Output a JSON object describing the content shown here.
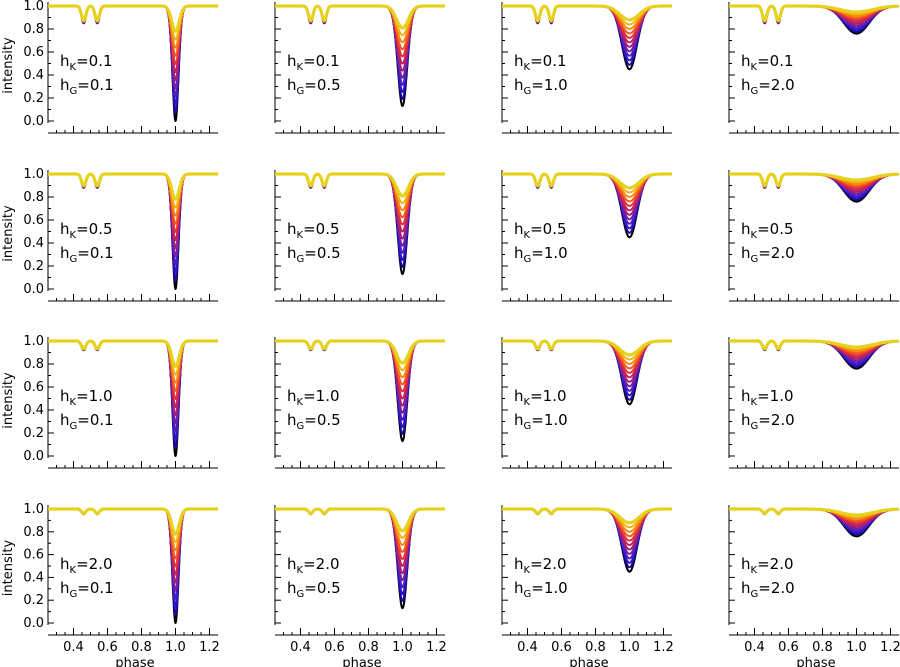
{
  "chart_data": {
    "type": "line",
    "grid": false,
    "layout": "4 rows x 4 columns of small-multiple panels",
    "xlabel": "phase",
    "ylabel": "intensity",
    "xlim": [
      0.25,
      1.25
    ],
    "ylim": [
      -0.05,
      1.05
    ],
    "x_ticks": [
      "0.4",
      "0.6",
      "0.8",
      "1.0",
      "1.2"
    ],
    "y_ticks": [
      "0.0",
      "0.2",
      "0.4",
      "0.6",
      "0.8",
      "1.0"
    ],
    "series_colors": [
      "#000000",
      "#1a0aa6",
      "#2e16c8",
      "#4a1ec0",
      "#7a1ea0",
      "#a2207c",
      "#c82058",
      "#e63232",
      "#f25a1e",
      "#f5880f",
      "#f2b10c",
      "#e6d21e"
    ],
    "primary_eclipse": {
      "center": 1.0,
      "min_intensity_by_col": [
        0.0,
        0.13,
        0.45,
        0.76
      ],
      "width_by_col": [
        0.018,
        0.028,
        0.045,
        0.075
      ]
    },
    "secondary_eclipse": {
      "centers": [
        0.46,
        0.54
      ],
      "min_intensity_by_row": [
        0.85,
        0.88,
        0.92,
        0.955
      ]
    },
    "panels": [
      [
        {
          "hK": "h",
          "K_sub": "K",
          "K_val": "=0.1",
          "hG": "h",
          "G_sub": "G",
          "G_val": "=0.1"
        },
        {
          "hK": "h",
          "K_sub": "K",
          "K_val": "=0.1",
          "hG": "h",
          "G_sub": "G",
          "G_val": "=0.5"
        },
        {
          "hK": "h",
          "K_sub": "K",
          "K_val": "=0.1",
          "hG": "h",
          "G_sub": "G",
          "G_val": "=1.0"
        },
        {
          "hK": "h",
          "K_sub": "K",
          "K_val": "=0.1",
          "hG": "h",
          "G_sub": "G",
          "G_val": "=2.0"
        }
      ],
      [
        {
          "hK": "h",
          "K_sub": "K",
          "K_val": "=0.5",
          "hG": "h",
          "G_sub": "G",
          "G_val": "=0.1"
        },
        {
          "hK": "h",
          "K_sub": "K",
          "K_val": "=0.5",
          "hG": "h",
          "G_sub": "G",
          "G_val": "=0.5"
        },
        {
          "hK": "h",
          "K_sub": "K",
          "K_val": "=0.5",
          "hG": "h",
          "G_sub": "G",
          "G_val": "=1.0"
        },
        {
          "hK": "h",
          "K_sub": "K",
          "K_val": "=0.5",
          "hG": "h",
          "G_sub": "G",
          "G_val": "=2.0"
        }
      ],
      [
        {
          "hK": "h",
          "K_sub": "K",
          "K_val": "=1.0",
          "hG": "h",
          "G_sub": "G",
          "G_val": "=0.1"
        },
        {
          "hK": "h",
          "K_sub": "K",
          "K_val": "=1.0",
          "hG": "h",
          "G_sub": "G",
          "G_val": "=0.5"
        },
        {
          "hK": "h",
          "K_sub": "K",
          "K_val": "=1.0",
          "hG": "h",
          "G_sub": "G",
          "G_val": "=1.0"
        },
        {
          "hK": "h",
          "K_sub": "K",
          "K_val": "=1.0",
          "hG": "h",
          "G_sub": "G",
          "G_val": "=2.0"
        }
      ],
      [
        {
          "hK": "h",
          "K_sub": "K",
          "K_val": "=2.0",
          "hG": "h",
          "G_sub": "G",
          "G_val": "=0.1"
        },
        {
          "hK": "h",
          "K_sub": "K",
          "K_val": "=2.0",
          "hG": "h",
          "G_sub": "G",
          "G_val": "=0.5"
        },
        {
          "hK": "h",
          "K_sub": "K",
          "K_val": "=2.0",
          "hG": "h",
          "G_sub": "G",
          "G_val": "=1.0"
        },
        {
          "hK": "h",
          "K_sub": "K",
          "K_val": "=2.0",
          "hG": "h",
          "G_sub": "G",
          "G_val": "=2.0"
        }
      ]
    ]
  }
}
